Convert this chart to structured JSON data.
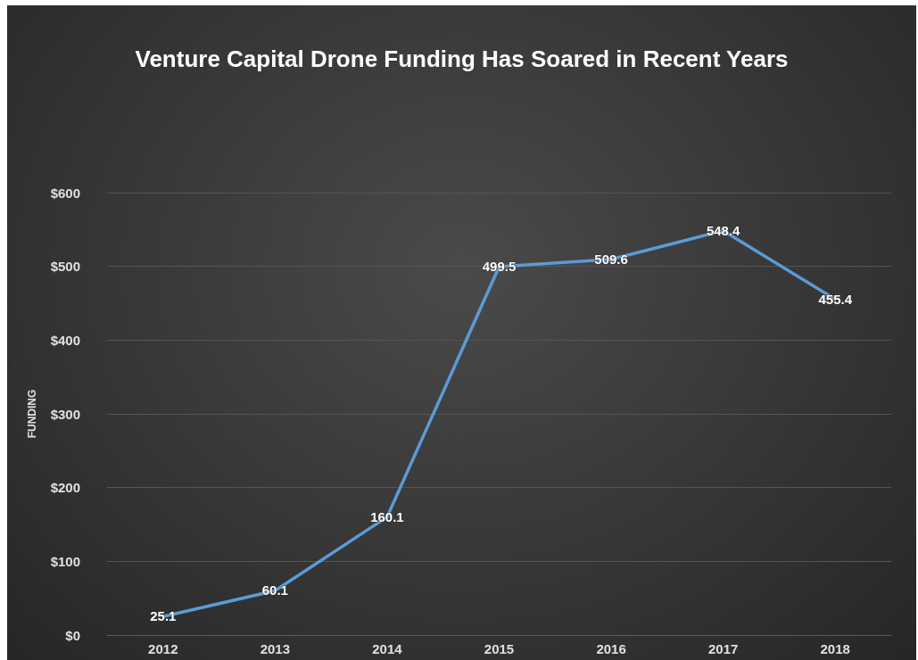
{
  "chart_data": {
    "type": "line",
    "title": "Venture Capital Drone Funding Has Soared in Recent Years",
    "ylabel": "FUNDING",
    "categories": [
      "2012",
      "2013",
      "2014",
      "2015",
      "2016",
      "2017",
      "2018"
    ],
    "series": [
      {
        "color": "#5b9bd5",
        "values": [
          25.1,
          60.1,
          160.1,
          499.5,
          509.6,
          548.4,
          455.4
        ]
      }
    ],
    "ylim": [
      0,
      600
    ],
    "yticks": [
      {
        "value": 0,
        "label": "$0"
      },
      {
        "value": 100,
        "label": "$100"
      },
      {
        "value": 200,
        "label": "$200"
      },
      {
        "value": 300,
        "label": "$300"
      },
      {
        "value": 400,
        "label": "$400"
      },
      {
        "value": 500,
        "label": "$500"
      },
      {
        "value": 600,
        "label": "$600"
      }
    ],
    "grid": "y",
    "data_labels": true,
    "marker": "none",
    "line_style": "solid"
  }
}
